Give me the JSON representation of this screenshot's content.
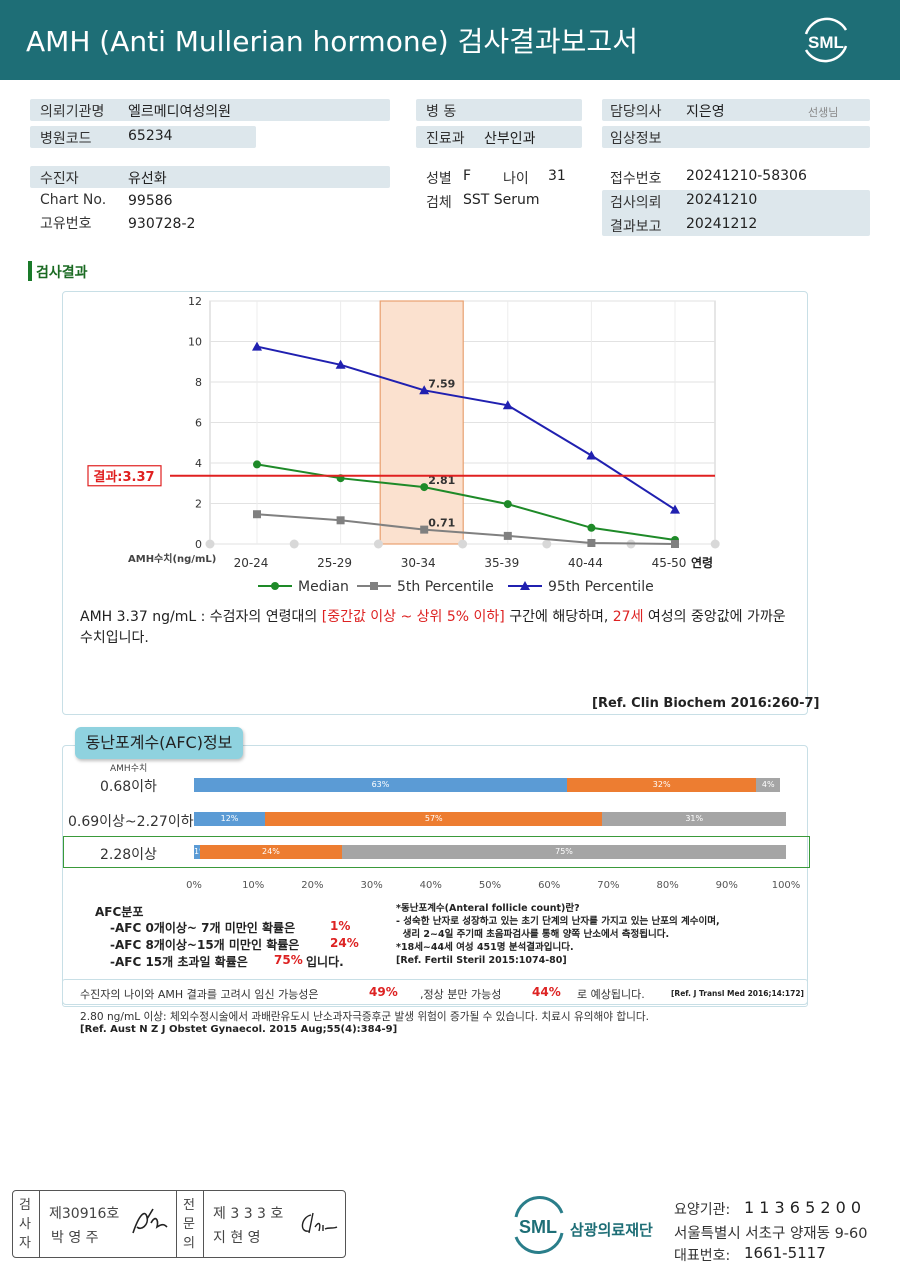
{
  "header": {
    "title": "AMH (Anti Mullerian hormone) 검사결과보고서",
    "logo_text": "SML"
  },
  "info": {
    "institution_label": "의뢰기관명",
    "institution": "엘르메디여성의원",
    "hospital_code_label": "병원코드",
    "hospital_code": "65234",
    "ward_label": "병 동",
    "ward": "",
    "dept_label": "진료과",
    "dept": "산부인과",
    "doctor_label": "담당의사",
    "doctor": "지은영",
    "doctor_suffix": "선생님",
    "clinical_label": "임상정보",
    "clinical": "",
    "patient_label": "수진자",
    "patient": "유선화",
    "chart_label": "Chart No.",
    "chart": "99586",
    "id_label": "고유번호",
    "id": "930728-2",
    "sex_label": "성별",
    "sex": "F",
    "age_label": "나이",
    "age": "31",
    "specimen_label": "검체",
    "specimen": "SST Serum",
    "receipt_label": "접수번호",
    "receipt": "20241210-58306",
    "request_label": "검사의뢰",
    "request": "20241210",
    "report_label": "결과보고",
    "report": "20241212"
  },
  "section_title": "검사결과",
  "chart_data": {
    "type": "line",
    "categories": [
      "20-24",
      "25-29",
      "30-34",
      "35-39",
      "40-44",
      "45-50"
    ],
    "x_axis_suffix": "연령",
    "ylabel": "AMH수치(ng/mL)",
    "ylim": [
      0,
      12
    ],
    "yticks": [
      0,
      2,
      4,
      6,
      8,
      10,
      12
    ],
    "highlight_category": "30-34",
    "result_line": {
      "value": 3.37,
      "label": "결과:3.37"
    },
    "series": [
      {
        "name": "Median",
        "color": "#1e8a28",
        "marker": "circle",
        "values": [
          3.93,
          3.25,
          2.81,
          1.97,
          0.8,
          0.2
        ]
      },
      {
        "name": "5th Percentile",
        "color": "#808080",
        "marker": "square",
        "values": [
          1.47,
          1.17,
          0.71,
          0.4,
          0.05,
          0.0
        ]
      },
      {
        "name": "95th Percentile",
        "color": "#2020b0",
        "marker": "triangle",
        "values": [
          9.75,
          8.85,
          7.59,
          6.85,
          4.37,
          1.7
        ]
      }
    ],
    "data_labels": [
      {
        "series": 2,
        "index": 2,
        "text": "7.59"
      },
      {
        "series": 0,
        "index": 2,
        "text": "2.81"
      },
      {
        "series": 1,
        "index": 2,
        "text": "0.71"
      }
    ]
  },
  "interpretation": {
    "part1": "AMH 3.37 ng/mL : 수검자의 연령대의 ",
    "range": "[중간값 이상 ~ 상위 5% 이하]",
    "part2": " 구간에 해당하며, ",
    "age": "27세",
    "part3": " 여성의 중앙값에 가까운 수치입니다.",
    "ref": "[Ref. Clin Biochem 2016:260-7]"
  },
  "afc": {
    "tab": "동난포계수(AFC)정보",
    "amh_header": "AMH수치",
    "colors": [
      "#5b9bd5",
      "#ed7d31",
      "#a5a5a5"
    ],
    "rows": [
      {
        "label": "0.68이하",
        "values": [
          63,
          32,
          4
        ],
        "texts": [
          "63%",
          "32%",
          "4%"
        ]
      },
      {
        "label": "0.69이상~2.27이하",
        "values": [
          12,
          57,
          31
        ],
        "texts": [
          "12%",
          "57%",
          "31%"
        ]
      },
      {
        "label": "2.28이상",
        "values": [
          1,
          24,
          75
        ],
        "texts": [
          "1%",
          "24%",
          "75%"
        ]
      }
    ],
    "ticks": [
      "0%",
      "10%",
      "20%",
      "30%",
      "40%",
      "50%",
      "60%",
      "70%",
      "80%",
      "90%",
      "100%"
    ],
    "dist_title": "AFC분포",
    "dist": [
      {
        "text": "-AFC 0개이상~ 7개 미만인 확률은",
        "value": "1%",
        "suffix": ""
      },
      {
        "text": "-AFC 8개이상~15개 미만인 확률은",
        "value": "24%",
        "suffix": ""
      },
      {
        "text": "-AFC 15개 초과일 확률은",
        "value": "75%",
        "suffix": "입니다."
      }
    ],
    "note_lines": [
      "*동난포계수(Anteral follicle count)란?",
      "- 성숙한 난자로 성장하고 있는 초기 단계의 난자를 가지고 있는 난포의 계수이며,",
      "  생리 2~4일 주기때 초음파검사를 통해 양쪽 난소에서 측정됩니다.",
      "*18세~44세 여성 451명 분석결과입니다.",
      "[Ref. Fertil Steril 2015:1074-80]"
    ]
  },
  "pregnancy": {
    "part1": "수진자의 나이와 AMH 결과를 고려시 임신 가능성은",
    "value1": "49%",
    "part2": ",정상 분만 가능성",
    "value2": "44%",
    "part3": "로 예상됩니다.",
    "ref": "[Ref. J Transl Med 2016;14:172]"
  },
  "warning": {
    "text": "2.80 ng/mL 이상: 체외수정시술에서 과배란유도시 난소과자극증후군 발생 위험이 증가될 수 있습니다. 치료시 유의해야 합니다.",
    "ref": "[Ref. Aust N Z J Obstet Gynaecol. 2015 Aug;55(4):384-9]"
  },
  "footer": {
    "tester_label": [
      "검",
      "사",
      "자"
    ],
    "tester_no": "제30916호",
    "tester_name": "박 영 주",
    "specialist_label": [
      "전",
      "문",
      "의"
    ],
    "specialist_no": "제 3 3 3 호",
    "specialist_name": "지 현 영",
    "org_logo": "SML",
    "org_name": "삼광의료재단",
    "care_code_label": "요양기관:",
    "care_code": "1 1 3 6 5 2 0 0",
    "address": "서울특별시 서초구 양재동 9-60",
    "phone_label": "대표번호:",
    "phone": "1661-5117"
  }
}
